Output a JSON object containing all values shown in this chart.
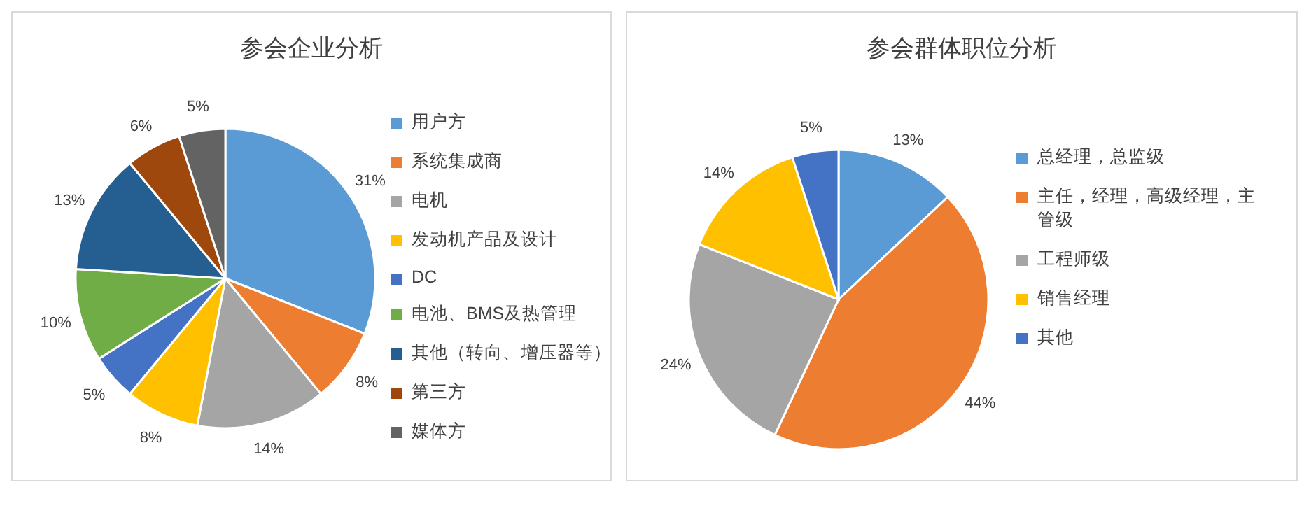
{
  "chart_data": [
    {
      "type": "pie",
      "title": "参会企业分析",
      "categories": [
        "用户方",
        "系统集成商",
        "电机",
        "发动机产品及设计",
        "DC",
        "电池、BMS及热管理",
        "其他（转向、增压器等）",
        "第三方",
        "媒体方"
      ],
      "values": [
        31,
        8,
        14,
        8,
        5,
        10,
        13,
        6,
        5
      ],
      "colors": [
        "#5b9bd5",
        "#ed7d31",
        "#a5a5a5",
        "#ffc000",
        "#4472c4",
        "#70ad47",
        "#255e91",
        "#9e480e",
        "#636363"
      ],
      "value_labels": [
        "31%",
        "8%",
        "14%",
        "8%",
        "5%",
        "10%",
        "13%",
        "6%",
        "5%"
      ],
      "legend": "right"
    },
    {
      "type": "pie",
      "title": "参会群体职位分析",
      "categories": [
        "总经理，总监级",
        "主任，经理，高级经理，主管级",
        "工程师级",
        "销售经理",
        "其他"
      ],
      "values": [
        13,
        44,
        24,
        14,
        5
      ],
      "colors": [
        "#5b9bd5",
        "#ed7d31",
        "#a5a5a5",
        "#ffc000",
        "#4472c4"
      ],
      "value_labels": [
        "13%",
        "44%",
        "24%",
        "14%",
        "5%"
      ],
      "legend": "right"
    }
  ]
}
